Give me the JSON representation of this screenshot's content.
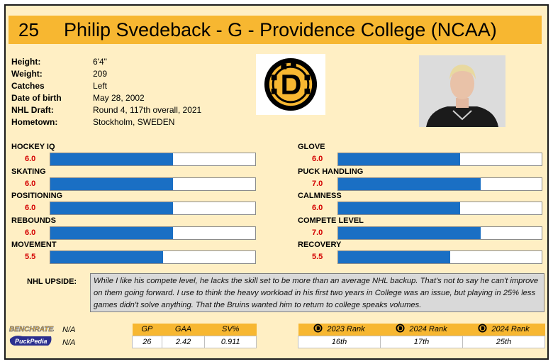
{
  "header": {
    "number": "25",
    "title": "Philip Svedeback - G - Providence College (NCAA)"
  },
  "bio": [
    {
      "label": "Height:",
      "value": "6'4\""
    },
    {
      "label": "Weight:",
      "value": "209"
    },
    {
      "label": "Catches",
      "value": "Left"
    },
    {
      "label": "Date of birth",
      "value": "May 28, 2002"
    },
    {
      "label": "NHL Draft:",
      "value": "Round 4, 117th overall, 2021"
    },
    {
      "label": "Hometown:",
      "value": "Stockholm, SWEDEN"
    }
  ],
  "logo_icon": "bruins-logo-icon",
  "photo_icon": "player-photo",
  "attributes_left": [
    {
      "name": "HOCKEY IQ",
      "score": "6.0",
      "value": 6.0
    },
    {
      "name": "SKATING",
      "score": "6.0",
      "value": 6.0
    },
    {
      "name": "POSITIONING",
      "score": "6.0",
      "value": 6.0
    },
    {
      "name": "REBOUNDS",
      "score": "6.0",
      "value": 6.0
    },
    {
      "name": "MOVEMENT",
      "score": "5.5",
      "value": 5.5
    }
  ],
  "attributes_right": [
    {
      "name": "GLOVE",
      "score": "6.0",
      "value": 6.0
    },
    {
      "name": "PUCK HANDLING",
      "score": "7.0",
      "value": 7.0
    },
    {
      "name": "CALMNESS",
      "score": "6.0",
      "value": 6.0
    },
    {
      "name": "COMPETE LEVEL",
      "score": "7.0",
      "value": 7.0
    },
    {
      "name": "RECOVERY",
      "score": "5.5",
      "value": 5.5
    }
  ],
  "bar_max": 10,
  "upside": {
    "label": "NHL UPSIDE:",
    "text": "While I like his compete level, he lacks the skill set to be more than an average NHL backup. That's not to say he can't improve on them going forward. I use to think the heavy workload in his first two years in College was an issue, but playing in 25% less games didn't solve anything. That the Bruins wanted him to return to college speaks volumes."
  },
  "brands": {
    "top": "BENCHRATES",
    "bottom": "PuckPedia",
    "na_top": "N/A",
    "na_bottom": "N/A"
  },
  "stats": {
    "headers": [
      "GP",
      "GAA",
      "SV%"
    ],
    "values": [
      "26",
      "2.42",
      "0.911"
    ]
  },
  "ranks": {
    "headers": [
      "2023 Rank",
      "2024 Rank",
      "2024 Rank"
    ],
    "values": [
      "16th",
      "17th",
      "25th"
    ]
  },
  "colors": {
    "gold": "#f7b731",
    "bar_fill": "#1a6fc4",
    "score_red": "#d40000",
    "background": "#ffefc4"
  }
}
